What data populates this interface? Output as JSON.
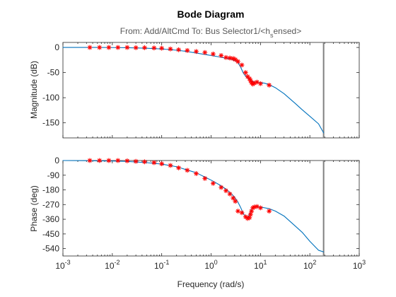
{
  "chart_data": [
    {
      "type": "line",
      "panel": "magnitude",
      "title": "Bode Diagram",
      "subtitle": "From: Add/AltCmd  To: Bus Selector1/<h_sensed>",
      "ylabel": "Magnitude (dB)",
      "xlabel": "",
      "xscale": "log",
      "xlim": [
        0.001,
        1000
      ],
      "ylim": [
        -180,
        10
      ],
      "xticks": [
        0.001,
        0.01,
        0.1,
        1,
        10,
        100,
        1000
      ],
      "yticks": [
        0,
        -50,
        -100,
        -150
      ],
      "ytick_labels": [
        "0",
        "-50",
        "-100",
        "-150"
      ],
      "grid": false,
      "colors": {
        "model_line": "#0072bd",
        "markers": "#ff0000",
        "vertical_line": "#808080"
      },
      "series": [
        {
          "style": "line",
          "x": [
            0.001,
            0.002,
            0.005,
            0.01,
            0.02,
            0.05,
            0.1,
            0.2,
            0.3,
            0.5,
            0.7,
            1.0,
            1.5,
            2.0,
            2.5,
            3.0,
            3.5,
            4.0,
            4.5,
            5.0,
            5.5,
            6.0,
            6.5,
            7.0,
            8.0,
            10.0,
            12.0,
            15.0,
            20.0,
            30.0,
            50.0,
            70.0,
            100.0,
            150.0,
            190.0
          ],
          "y": [
            0,
            0,
            0,
            -0.2,
            -0.5,
            -1.5,
            -3,
            -5.5,
            -7.5,
            -11,
            -13.5,
            -16,
            -19,
            -21.5,
            -23.5,
            -26,
            -30,
            -40,
            -51,
            -57,
            -61,
            -64,
            -67,
            -68,
            -69,
            -70,
            -71,
            -74,
            -80,
            -92,
            -111,
            -124,
            -137,
            -152,
            -170
          ]
        },
        {
          "style": "markers",
          "marker": "*",
          "x": [
            0.0035,
            0.0055,
            0.0085,
            0.013,
            0.02,
            0.03,
            0.045,
            0.07,
            0.1,
            0.15,
            0.22,
            0.33,
            0.5,
            0.75,
            1.1,
            1.6,
            2.0,
            2.4,
            2.8,
            3.1,
            3.5,
            4.2,
            5.0,
            5.5,
            6.0,
            6.3,
            6.6,
            7.0,
            7.5,
            8.5,
            10.0,
            15.0
          ],
          "y": [
            0,
            0,
            0,
            0,
            0,
            -0.5,
            -0.5,
            -1,
            -1.5,
            -3,
            -4.5,
            -6,
            -8,
            -10,
            -13,
            -16,
            -20,
            -21,
            -22,
            -24,
            -28,
            -35,
            -50,
            -58,
            -62,
            -66,
            -70,
            -73,
            -71,
            -69,
            -72,
            -75
          ]
        }
      ],
      "vertical_line_x": 190
    },
    {
      "type": "line",
      "panel": "phase",
      "ylabel": "Phase (deg)",
      "xlabel": "Frequency  (rad/s)",
      "xscale": "log",
      "xlim": [
        0.001,
        1000
      ],
      "ylim": [
        -585,
        0
      ],
      "xticks": [
        0.001,
        0.01,
        0.1,
        1,
        10,
        100,
        1000
      ],
      "xtick_labels": [
        {
          "base": "10",
          "exp": "-3"
        },
        {
          "base": "10",
          "exp": "-2"
        },
        {
          "base": "10",
          "exp": "-1"
        },
        {
          "base": "10",
          "exp": "0"
        },
        {
          "base": "10",
          "exp": "1"
        },
        {
          "base": "10",
          "exp": "2"
        },
        {
          "base": "10",
          "exp": "3"
        }
      ],
      "yticks": [
        0,
        -90,
        -180,
        -270,
        -360,
        -450,
        -540
      ],
      "ytick_labels": [
        "0",
        "-90",
        "-180",
        "-270",
        "-360",
        "-450",
        "-540"
      ],
      "grid": false,
      "colors": {
        "model_line": "#0072bd",
        "markers": "#ff0000",
        "vertical_line": "#808080"
      },
      "series": [
        {
          "style": "line",
          "x": [
            0.001,
            0.003,
            0.01,
            0.02,
            0.05,
            0.1,
            0.2,
            0.5,
            1.0,
            1.5,
            2.0,
            2.5,
            3.0,
            3.5,
            4.0,
            4.5,
            5.0,
            5.5,
            6.0,
            6.5,
            7.0,
            8.0,
            10.0,
            15.0,
            20.0,
            30.0,
            50.0,
            70.0,
            100.0,
            150.0,
            190.0
          ],
          "y": [
            0,
            -1,
            -3,
            -6,
            -13,
            -22,
            -38,
            -75,
            -120,
            -150,
            -175,
            -200,
            -225,
            -255,
            -290,
            -325,
            -345,
            -350,
            -330,
            -300,
            -285,
            -282,
            -285,
            -295,
            -310,
            -340,
            -400,
            -440,
            -495,
            -550,
            -560
          ]
        },
        {
          "style": "markers",
          "marker": "*",
          "x": [
            0.0035,
            0.0055,
            0.0085,
            0.013,
            0.02,
            0.03,
            0.045,
            0.07,
            0.1,
            0.15,
            0.22,
            0.33,
            0.5,
            0.75,
            1.1,
            1.6,
            2.0,
            2.4,
            2.8,
            3.1,
            3.5,
            4.2,
            5.0,
            5.5,
            6.0,
            6.3,
            6.6,
            7.0,
            7.5,
            8.5,
            10.0,
            15.0
          ],
          "y": [
            0,
            0,
            0,
            0,
            -2,
            -5,
            -8,
            -13,
            -20,
            -30,
            -45,
            -60,
            -80,
            -110,
            -140,
            -165,
            -185,
            -205,
            -230,
            -250,
            -310,
            -320,
            -345,
            -355,
            -350,
            -330,
            -310,
            -290,
            -285,
            -282,
            -290,
            -310
          ]
        }
      ],
      "vertical_line_x": 190
    }
  ]
}
